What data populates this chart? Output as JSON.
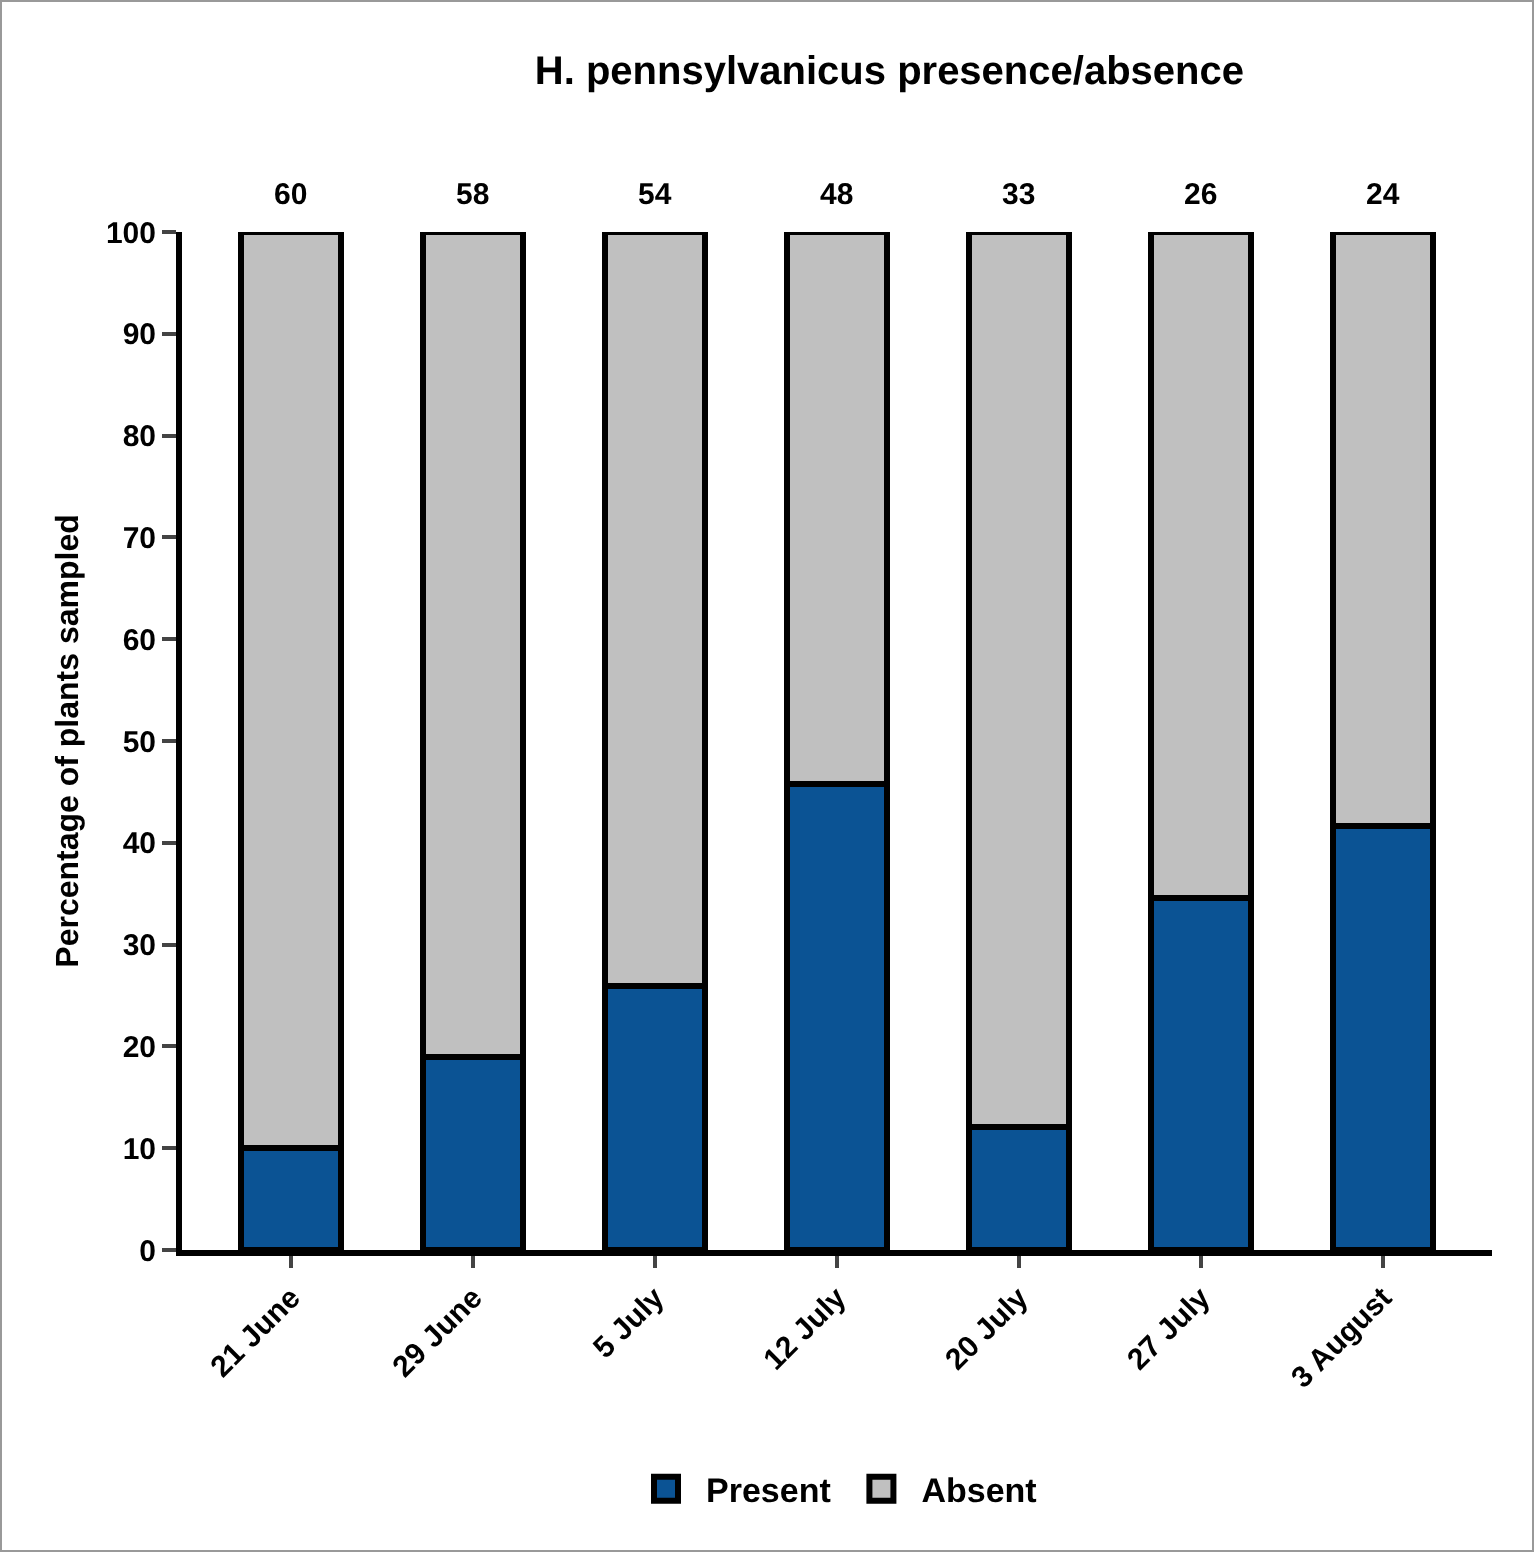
{
  "chart_data": {
    "type": "bar",
    "title": "H. pennsylvanicus presence/absence",
    "ylabel": "Percentage of plants sampled",
    "categories": [
      "21 June",
      "29 June",
      "5 July",
      "12 July",
      "20 July",
      "27 July",
      "3 August"
    ],
    "series": [
      {
        "name": "Present",
        "color": "#0b5394",
        "values": [
          10,
          19,
          25.9,
          45.8,
          12.1,
          34.6,
          41.7
        ]
      },
      {
        "name": "Absent",
        "color": "#c0c0c0",
        "values": [
          90,
          81,
          74.1,
          54.2,
          87.9,
          65.4,
          58.3
        ]
      }
    ],
    "stacked": true,
    "ylim": [
      0,
      100
    ],
    "yticks": [
      0,
      10,
      20,
      30,
      40,
      50,
      60,
      70,
      80,
      90,
      100
    ],
    "grid": false,
    "legend": "bottom",
    "annotations": [
      {
        "text": "60",
        "x": "21 June",
        "y": 100
      },
      {
        "text": "58",
        "x": "29 June",
        "y": 100
      },
      {
        "text": "54",
        "x": "5 July",
        "y": 100
      },
      {
        "text": "48",
        "x": "12 July",
        "y": 100
      },
      {
        "text": "33",
        "x": "20 July",
        "y": 100
      },
      {
        "text": "26",
        "x": "27 July",
        "y": 100
      },
      {
        "text": "24",
        "x": "3 August",
        "y": 100
      }
    ]
  }
}
